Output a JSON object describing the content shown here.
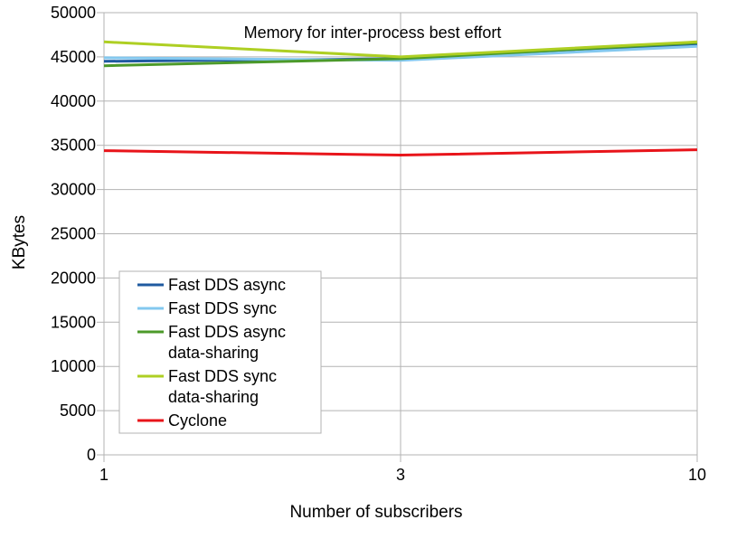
{
  "chart_data": {
    "type": "line",
    "title": "Memory for inter-process best effort",
    "xlabel": "Number of subscribers",
    "ylabel": "KBytes",
    "x": [
      "1",
      "3",
      "10"
    ],
    "ylim": [
      0,
      50000
    ],
    "yticks": [
      "0",
      "5000",
      "10000",
      "15000",
      "20000",
      "25000",
      "30000",
      "35000",
      "40000",
      "45000",
      "50000"
    ],
    "grid": true,
    "legend_position": "bottom-left",
    "series": [
      {
        "name": "Fast DDS async",
        "label_lines": [
          "Fast DDS async"
        ],
        "color": "#1f5aa0",
        "values": [
          44500,
          44800,
          46400
        ]
      },
      {
        "name": "Fast DDS sync",
        "label_lines": [
          "Fast DDS sync"
        ],
        "color": "#83c8ef",
        "values": [
          44900,
          44600,
          46200
        ]
      },
      {
        "name": "Fast DDS async data-sharing",
        "label_lines": [
          "Fast DDS async",
          "data-sharing"
        ],
        "color": "#4c9a2a",
        "values": [
          44000,
          44800,
          46600
        ]
      },
      {
        "name": "Fast DDS sync data-sharing",
        "label_lines": [
          "Fast DDS sync",
          "data-sharing"
        ],
        "color": "#aecf23",
        "values": [
          46700,
          45000,
          46700
        ]
      },
      {
        "name": "Cyclone",
        "label_lines": [
          "Cyclone"
        ],
        "color": "#e8141a",
        "values": [
          34400,
          33900,
          34500
        ]
      }
    ]
  }
}
